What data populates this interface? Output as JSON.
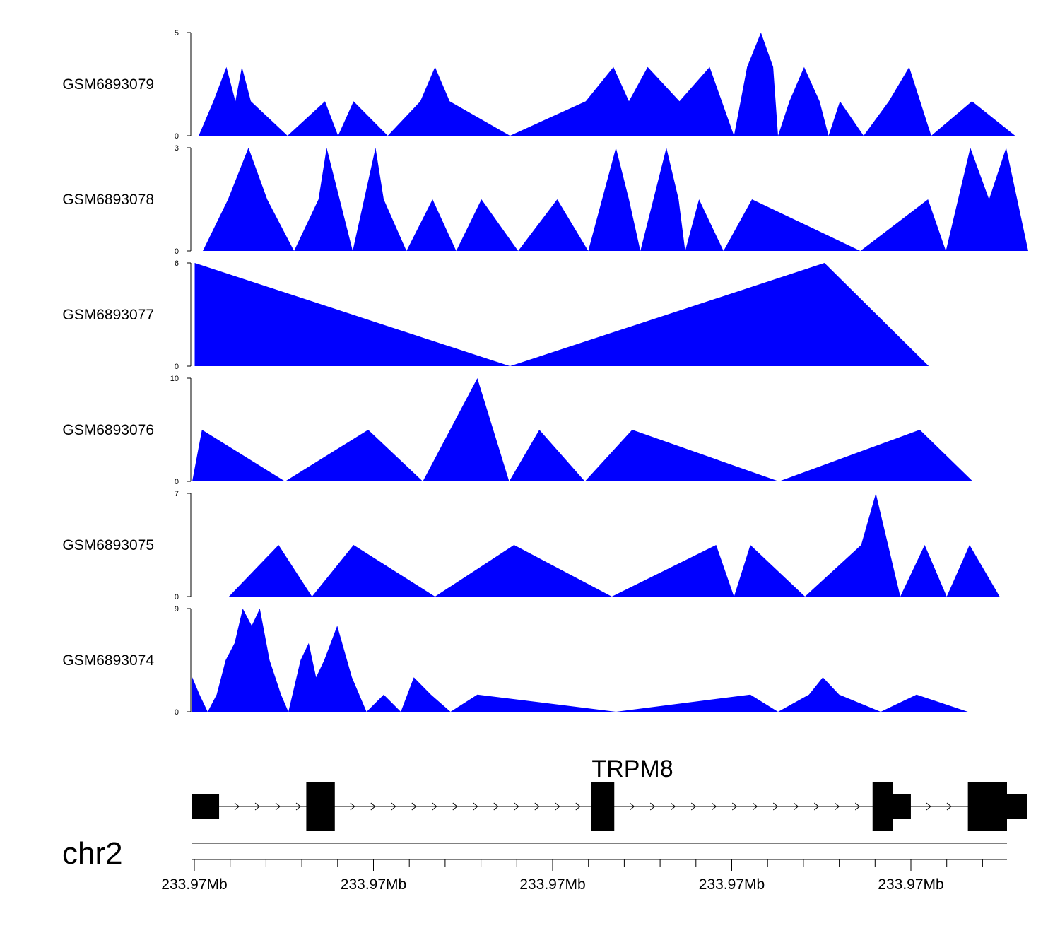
{
  "colors": {
    "coverage_fill": "#0000ff",
    "axis": "#000000",
    "exon": "#000000"
  },
  "chart_data": {
    "type": "area",
    "x_domain": [
      0,
      1000
    ],
    "tracks": [
      {
        "name": "GSM6893079",
        "ymax": 5,
        "ymin": 0,
        "points": [
          [
            8,
            0
          ],
          [
            26,
            1.67
          ],
          [
            42,
            3.33
          ],
          [
            53,
            1.67
          ],
          [
            61,
            3.33
          ],
          [
            72,
            1.67
          ],
          [
            117,
            0
          ],
          [
            163,
            1.67
          ],
          [
            179,
            0
          ],
          [
            198,
            1.67
          ],
          [
            240,
            0
          ],
          [
            280,
            1.67
          ],
          [
            298,
            3.33
          ],
          [
            316,
            1.67
          ],
          [
            390,
            0
          ],
          [
            483,
            1.67
          ],
          [
            517,
            3.33
          ],
          [
            536,
            1.67
          ],
          [
            559,
            3.33
          ],
          [
            598,
            1.67
          ],
          [
            635,
            3.33
          ],
          [
            665,
            0
          ],
          [
            681,
            3.33
          ],
          [
            698,
            5
          ],
          [
            713,
            3.33
          ],
          [
            719,
            0
          ],
          [
            733,
            1.67
          ],
          [
            751,
            3.33
          ],
          [
            770,
            1.67
          ],
          [
            781,
            0
          ],
          [
            795,
            1.67
          ],
          [
            824,
            0
          ],
          [
            855,
            1.67
          ],
          [
            880,
            3.33
          ],
          [
            907,
            0
          ],
          [
            957,
            1.67
          ],
          [
            1010,
            0
          ]
        ]
      },
      {
        "name": "GSM6893078",
        "ymax": 3,
        "ymin": 0,
        "points": [
          [
            13,
            0
          ],
          [
            44,
            1.5
          ],
          [
            69,
            3
          ],
          [
            92,
            1.5
          ],
          [
            125,
            0
          ],
          [
            155,
            1.5
          ],
          [
            165,
            3
          ],
          [
            197,
            0
          ],
          [
            225,
            3
          ],
          [
            235,
            1.5
          ],
          [
            263,
            0
          ],
          [
            295,
            1.5
          ],
          [
            324,
            0
          ],
          [
            355,
            1.5
          ],
          [
            400,
            0
          ],
          [
            448,
            1.5
          ],
          [
            486,
            0
          ],
          [
            520,
            3
          ],
          [
            536,
            1.5
          ],
          [
            550,
            0
          ],
          [
            582,
            3
          ],
          [
            597,
            1.5
          ],
          [
            605,
            0
          ],
          [
            622,
            1.5
          ],
          [
            652,
            0
          ],
          [
            687,
            1.5
          ],
          [
            820,
            0
          ],
          [
            903,
            1.5
          ],
          [
            925,
            0
          ],
          [
            955,
            3
          ],
          [
            978,
            1.5
          ],
          [
            999,
            3
          ],
          [
            1026,
            0
          ]
        ]
      },
      {
        "name": "GSM6893077",
        "ymax": 6,
        "ymin": 0,
        "points": [
          [
            3,
            0
          ],
          [
            3,
            6
          ],
          [
            390,
            0
          ],
          [
            776,
            6
          ],
          [
            904,
            0
          ]
        ]
      },
      {
        "name": "GSM6893076",
        "ymax": 10,
        "ymin": 0,
        "points": [
          [
            0,
            0
          ],
          [
            12,
            5
          ],
          [
            114,
            0
          ],
          [
            216,
            5
          ],
          [
            283,
            0
          ],
          [
            350,
            10
          ],
          [
            389,
            0
          ],
          [
            426,
            5
          ],
          [
            482,
            0
          ],
          [
            540,
            5
          ],
          [
            720,
            0
          ],
          [
            893,
            5
          ],
          [
            958,
            0
          ]
        ]
      },
      {
        "name": "GSM6893075",
        "ymax": 7,
        "ymin": 0,
        "points": [
          [
            45,
            0
          ],
          [
            106,
            3.5
          ],
          [
            147,
            0
          ],
          [
            198,
            3.5
          ],
          [
            298,
            0
          ],
          [
            395,
            3.5
          ],
          [
            515,
            0
          ],
          [
            643,
            3.5
          ],
          [
            665,
            0
          ],
          [
            685,
            3.5
          ],
          [
            752,
            0
          ],
          [
            821,
            3.5
          ],
          [
            839,
            7
          ],
          [
            869,
            0
          ],
          [
            899,
            3.5
          ],
          [
            926,
            0
          ],
          [
            954,
            3.5
          ],
          [
            991,
            0
          ]
        ]
      },
      {
        "name": "GSM6893074",
        "ymax": 9,
        "ymin": 0,
        "points": [
          [
            0,
            0
          ],
          [
            0,
            3
          ],
          [
            9,
            1.5
          ],
          [
            19,
            0
          ],
          [
            30,
            1.5
          ],
          [
            41,
            4.5
          ],
          [
            52,
            6
          ],
          [
            62,
            9
          ],
          [
            73,
            7.5
          ],
          [
            83,
            9
          ],
          [
            95,
            4.5
          ],
          [
            109,
            1.5
          ],
          [
            118,
            0
          ],
          [
            133,
            4.5
          ],
          [
            143,
            6
          ],
          [
            152,
            3
          ],
          [
            162,
            4.5
          ],
          [
            178,
            7.5
          ],
          [
            196,
            3
          ],
          [
            214,
            0
          ],
          [
            235,
            1.5
          ],
          [
            256,
            0
          ],
          [
            272,
            3
          ],
          [
            293,
            1.5
          ],
          [
            317,
            0
          ],
          [
            350,
            1.5
          ],
          [
            520,
            0
          ],
          [
            685,
            1.5
          ],
          [
            719,
            0
          ],
          [
            757,
            1.5
          ],
          [
            774,
            3
          ],
          [
            794,
            1.5
          ],
          [
            845,
            0
          ],
          [
            889,
            1.5
          ],
          [
            952,
            0
          ]
        ]
      }
    ],
    "gene": {
      "name": "TRPM8",
      "strand": "+",
      "exons": [
        [
          0,
          33,
          "utr"
        ],
        [
          140,
          175,
          "cds"
        ],
        [
          490,
          518,
          "cds"
        ],
        [
          835,
          860,
          "cds"
        ],
        [
          860,
          882,
          "utr"
        ],
        [
          952,
          1000,
          "cds"
        ],
        [
          1000,
          1025,
          "utr"
        ]
      ]
    },
    "axis": {
      "chromosome": "chr2",
      "major_tick_labels": [
        "233.97Mb",
        "233.97Mb",
        "233.97Mb",
        "233.97Mb",
        "233.97Mb"
      ]
    }
  }
}
